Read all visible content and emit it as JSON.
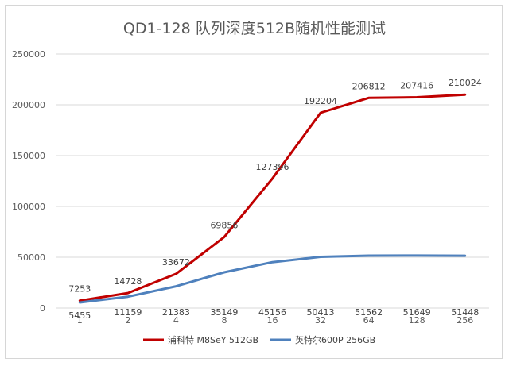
{
  "chart_data": {
    "type": "line",
    "title": "QD1-128 队列深度512B随机性能测试",
    "categories": [
      "1",
      "2",
      "4",
      "8",
      "16",
      "32",
      "64",
      "128",
      "256"
    ],
    "series": [
      {
        "name": "浦科特 M8SeY 512GB",
        "color": "#C00000",
        "values": [
          7253,
          14728,
          33672,
          69856,
          127396,
          192204,
          206812,
          207416,
          210024
        ]
      },
      {
        "name": "英特尔600P 256GB",
        "color": "#4F81BD",
        "values": [
          5455,
          11159,
          21383,
          35149,
          45156,
          50413,
          51562,
          51649,
          51448
        ]
      }
    ],
    "yticks": [
      "0",
      "50000",
      "100000",
      "150000",
      "200000",
      "250000"
    ],
    "ylim": [
      0,
      250000
    ],
    "grid": true,
    "legend": "bottom"
  }
}
